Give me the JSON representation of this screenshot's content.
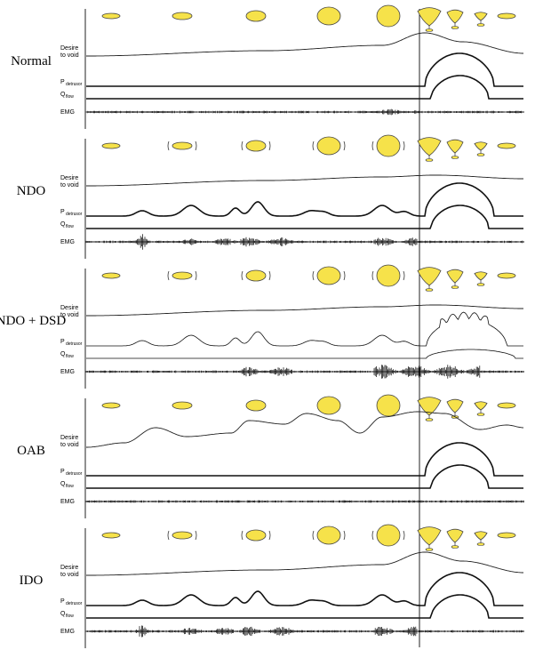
{
  "panels": [
    {
      "label": "Normal"
    },
    {
      "label": "NDO"
    },
    {
      "label": "NDO + DSD"
    },
    {
      "label": "OAB"
    },
    {
      "label": "IDO"
    }
  ],
  "trace_labels": {
    "desire": [
      "Desire",
      "to void"
    ],
    "pressure": "P",
    "pressure_sub": "detrusor",
    "flow": "Q",
    "flow_sub": "flow",
    "emg": "EMG"
  }
}
